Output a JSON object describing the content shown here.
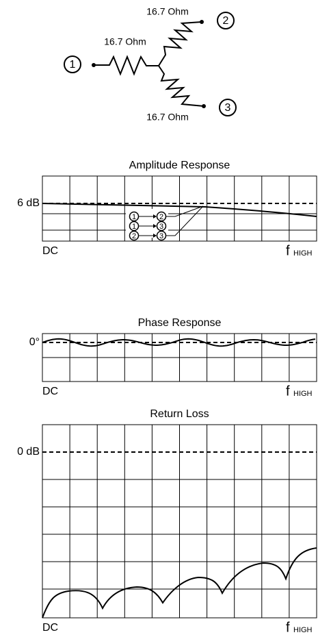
{
  "schematic": {
    "resistors": [
      "16.7 Ohm",
      "16.7 Ohm",
      "16.7 Ohm"
    ],
    "ports": [
      "1",
      "2",
      "3"
    ]
  },
  "plots": [
    {
      "title": "Amplitude Response",
      "ref_label": "6 dB",
      "x_start": "DC",
      "x_end_main": "f",
      "x_end_sub": "HIGH",
      "legend": [
        [
          "1",
          "2"
        ],
        [
          "1",
          "3"
        ],
        [
          "2",
          "3"
        ]
      ]
    },
    {
      "title": "Phase Response",
      "ref_label": "0°",
      "x_start": "DC",
      "x_end_main": "f",
      "x_end_sub": "HIGH"
    },
    {
      "title": "Return Loss",
      "ref_label": "0 dB",
      "x_start": "DC",
      "x_end_main": "f",
      "x_end_sub": "HIGH"
    }
  ]
}
